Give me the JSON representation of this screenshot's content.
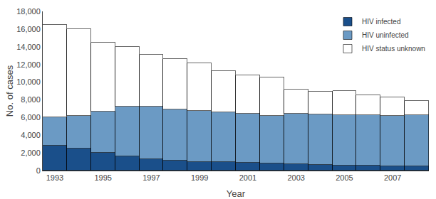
{
  "chart_data": {
    "type": "bar",
    "stacked": true,
    "x_label": "Year",
    "y_label": "No. of cases",
    "x": [
      1993,
      1994,
      1995,
      1996,
      1997,
      1998,
      1999,
      2000,
      2001,
      2002,
      2003,
      2004,
      2005,
      2006,
      2007,
      2008
    ],
    "series": [
      {
        "name": "HIV infected",
        "color": "#1a4f8a",
        "values": [
          2800,
          2500,
          2000,
          1600,
          1300,
          1150,
          1000,
          950,
          900,
          800,
          700,
          650,
          600,
          550,
          500,
          450
        ]
      },
      {
        "name": "HIV uninfected",
        "color": "#6b9ac4",
        "values": [
          3215,
          3700,
          4700,
          5600,
          5900,
          5750,
          5750,
          5650,
          5500,
          5400,
          5700,
          5700,
          5700,
          5700,
          5700,
          5784
        ]
      },
      {
        "name": "HIV status unknown",
        "color": "#ffffff",
        "values": [
          10492,
          9800,
          7800,
          6800,
          5900,
          5700,
          5400,
          4650,
          4350,
          4300,
          2800,
          2600,
          2700,
          2300,
          2100,
          1638
        ]
      }
    ],
    "xlim": [
      1992.5,
      2008.5
    ],
    "xticks": [
      1993,
      1995,
      1997,
      1999,
      2001,
      2003,
      2005,
      2007
    ],
    "ylim": [
      0,
      18000
    ],
    "yticks": [
      0,
      {
        "value": 2000,
        "label": "2,000"
      },
      {
        "value": 4000,
        "label": "4,000"
      },
      {
        "value": 6000,
        "label": "6,000"
      },
      {
        "value": 8000,
        "label": "8,000"
      },
      {
        "value": 10000,
        "label": "10,000"
      },
      {
        "value": 12000,
        "label": "12,000"
      },
      {
        "value": 14000,
        "label": "14,000"
      },
      {
        "value": 16000,
        "label": "16,000"
      },
      {
        "value": 18000,
        "label": "18,000"
      }
    ],
    "grid": false,
    "legend": "upper right"
  }
}
